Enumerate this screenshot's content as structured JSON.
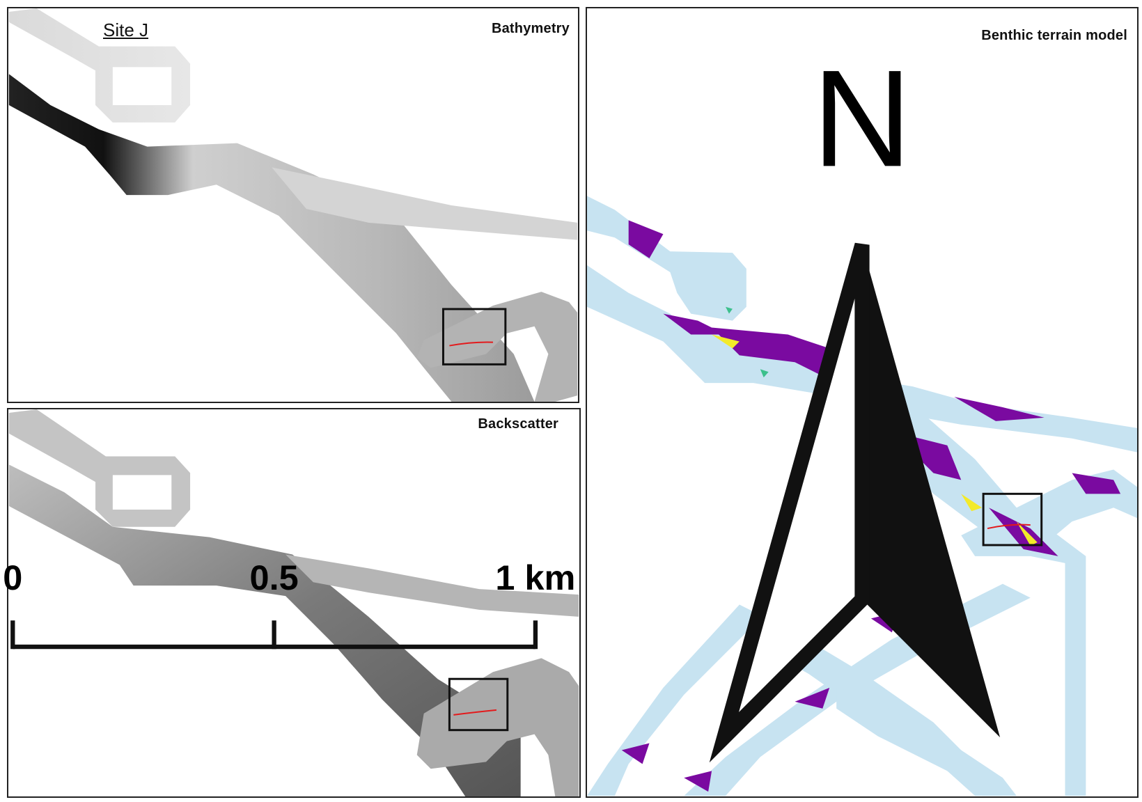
{
  "site_label": "Site J",
  "panels": {
    "bathymetry": {
      "title": "Bathymetry"
    },
    "backscatter": {
      "title": "Backscatter"
    },
    "btm": {
      "title": "Benthic terrain model"
    }
  },
  "north_arrow": {
    "label": "N"
  },
  "scale_bar": {
    "ticks": [
      "0",
      "0.5",
      "1 km"
    ]
  },
  "colors": {
    "btm_base": "#c7e3f1",
    "btm_class_purple": "#7a0aa0",
    "btm_class_yellow": "#f3ea2a",
    "btm_class_green": "#3cc08c",
    "transect": "#e31a1c",
    "frame": "#111111"
  }
}
